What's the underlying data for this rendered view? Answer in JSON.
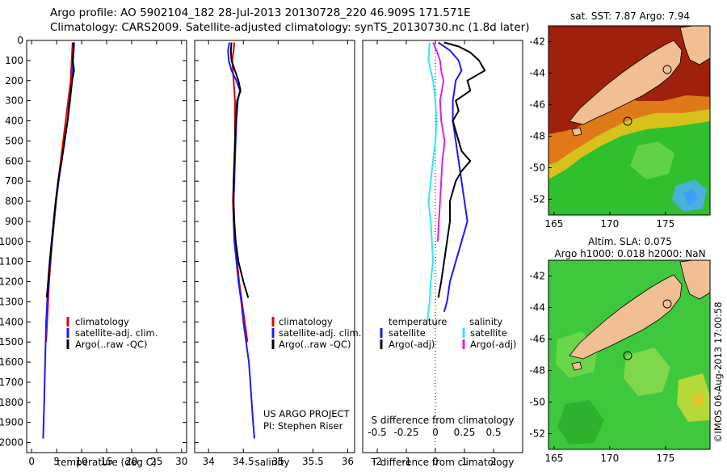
{
  "header": {
    "line1": "Argo profile: AO 5902104_182 28-Jul-2013 20130728_220 46.909S 171.571E",
    "line2": "Climatology: CARS2009. Satellite-adjusted climatology: synTS_20130730.nc (1.8d later)"
  },
  "colors": {
    "climatology": "#e00000",
    "satellite": "#1a1aff",
    "argo": "#000000",
    "satellite_salinity": "#33e6f0",
    "argo_salinity": "#e020e0",
    "land": "#f2bf95",
    "sea_ice_blue": "#3aa0ff"
  },
  "chart_data": [
    {
      "type": "line",
      "panel": "temperature",
      "xlabel": "temperature (deg C)",
      "ylabel": "",
      "xlim": [
        -1,
        31
      ],
      "ylim": [
        2050,
        0
      ],
      "xticks": [
        0,
        5,
        10,
        15,
        20,
        25,
        30
      ],
      "yticks": [
        0,
        100,
        200,
        300,
        400,
        500,
        600,
        700,
        800,
        900,
        1000,
        1100,
        1200,
        1300,
        1400,
        1500,
        1600,
        1700,
        1800,
        1900,
        2000
      ],
      "legend": [
        "climatology",
        "satellite-adj. clim.",
        "Argo(..raw -QC)"
      ],
      "legend_position": "lower-middle",
      "series": [
        {
          "name": "climatology",
          "color": "#e00000",
          "depth": [
            10,
            100,
            200,
            300,
            400,
            500,
            600,
            700,
            800,
            900,
            1000,
            1100,
            1200,
            1300,
            1400,
            1500
          ],
          "values": [
            8.2,
            8.0,
            7.8,
            7.3,
            6.8,
            6.3,
            5.8,
            5.3,
            4.9,
            4.5,
            4.1,
            3.8,
            3.5,
            3.3,
            3.1,
            2.9
          ]
        },
        {
          "name": "satellite-adj. clim.",
          "color": "#1a1aff",
          "depth": [
            10,
            100,
            200,
            300,
            400,
            500,
            600,
            700,
            800,
            900,
            1000,
            1100,
            1200,
            1300,
            1400,
            1500,
            1600,
            1700,
            1800,
            1900,
            1980
          ],
          "values": [
            8.5,
            8.3,
            8.1,
            7.7,
            7.2,
            6.6,
            6.0,
            5.4,
            4.9,
            4.5,
            4.1,
            3.7,
            3.4,
            3.1,
            2.9,
            2.8,
            2.7,
            2.6,
            2.5,
            2.4,
            2.3
          ]
        },
        {
          "name": "Argo(..raw -QC)",
          "color": "#000000",
          "depth": [
            10,
            50,
            100,
            150,
            200,
            300,
            400,
            500,
            600,
            700,
            800,
            900,
            1000,
            1100,
            1200,
            1280
          ],
          "values": [
            8.3,
            8.4,
            8.2,
            8.5,
            8.1,
            7.6,
            7.2,
            6.6,
            6.0,
            5.3,
            4.8,
            4.4,
            4.0,
            3.6,
            3.3,
            3.0
          ]
        }
      ]
    },
    {
      "type": "line",
      "panel": "salinity",
      "xlabel": "salinity",
      "ylabel": "",
      "xlim": [
        33.8,
        36.1
      ],
      "ylim": [
        2050,
        0
      ],
      "xticks": [
        34,
        34.5,
        35,
        35.5,
        36
      ],
      "xticklabels": [
        "34",
        "34.5",
        "35",
        "35.5",
        "36"
      ],
      "legend": [
        "climatology",
        "satellite-adj. clim.",
        "Argo(..raw -QC)"
      ],
      "legend_position": "lower-right",
      "annotation": [
        "US ARGO PROJECT",
        "PI: Stephen Riser"
      ],
      "series": [
        {
          "name": "climatology",
          "color": "#e00000",
          "depth": [
            10,
            50,
            100,
            150,
            200,
            250,
            300,
            400,
            500,
            600,
            700,
            800,
            900,
            1000,
            1100,
            1200,
            1300,
            1400,
            1500
          ],
          "values": [
            34.37,
            34.36,
            34.34,
            34.35,
            34.36,
            34.37,
            34.38,
            34.38,
            34.38,
            34.37,
            34.36,
            34.35,
            34.36,
            34.38,
            34.41,
            34.44,
            34.48,
            34.52,
            34.56
          ]
        },
        {
          "name": "satellite-adj. clim.",
          "color": "#1a1aff",
          "depth": [
            10,
            50,
            100,
            150,
            200,
            250,
            300,
            400,
            500,
            600,
            700,
            800,
            900,
            1000,
            1100,
            1200,
            1300,
            1400,
            1500,
            1600,
            1700,
            1800,
            1900,
            1980
          ],
          "values": [
            34.3,
            34.28,
            34.29,
            34.33,
            34.4,
            34.45,
            34.42,
            34.4,
            34.39,
            34.38,
            34.37,
            34.36,
            34.36,
            34.37,
            34.4,
            34.43,
            34.47,
            34.5,
            34.54,
            34.58,
            34.6,
            34.62,
            34.64,
            34.66
          ]
        },
        {
          "name": "Argo(..raw -QC)",
          "color": "#000000",
          "depth": [
            10,
            50,
            100,
            150,
            200,
            250,
            300,
            400,
            500,
            600,
            700,
            800,
            900,
            1000,
            1100,
            1200,
            1280
          ],
          "values": [
            34.33,
            34.32,
            34.33,
            34.38,
            34.43,
            34.46,
            34.41,
            34.39,
            34.38,
            34.37,
            34.36,
            34.36,
            34.37,
            34.39,
            34.43,
            34.5,
            34.57
          ]
        }
      ]
    },
    {
      "type": "line",
      "panel": "difference",
      "xlabel": "T difference from climatology",
      "xlabel2": "S difference from climatology",
      "xlim": [
        -2.5,
        3
      ],
      "ylim": [
        2050,
        0
      ],
      "xticks": [
        -2,
        -1,
        0,
        1,
        2
      ],
      "xticks2": [
        -0.5,
        -0.25,
        0,
        0.25,
        0.5
      ],
      "xticklabels2": [
        "-0.5",
        "-0.25",
        "0",
        "0.25",
        "0.5"
      ],
      "legend_headers": [
        "temperature",
        "salinity"
      ],
      "legend": [
        "satellite",
        "Argo(-adj)",
        "satellite",
        "Argo(-adj)"
      ],
      "series": [
        {
          "name": "temperature satellite",
          "color": "#1a1aff",
          "depth": [
            10,
            50,
            100,
            150,
            200,
            300,
            400,
            500,
            600,
            700,
            800,
            900,
            1000,
            1100,
            1200,
            1300,
            1350
          ],
          "values": [
            0.1,
            0.5,
            0.8,
            0.9,
            0.7,
            0.6,
            0.6,
            0.7,
            0.8,
            0.9,
            1.0,
            1.1,
            0.9,
            0.7,
            0.5,
            0.4,
            0.3
          ]
        },
        {
          "name": "temperature Argo(-adj)",
          "color": "#000000",
          "depth": [
            10,
            30,
            60,
            100,
            150,
            200,
            250,
            300,
            350,
            400,
            450,
            500,
            550,
            600,
            650,
            700,
            750,
            800,
            900,
            1000,
            1100,
            1200,
            1280
          ],
          "values": [
            0.3,
            0.8,
            1.2,
            1.5,
            1.7,
            1.1,
            1.2,
            0.7,
            0.8,
            0.6,
            0.7,
            0.8,
            0.9,
            1.2,
            0.9,
            0.7,
            0.6,
            0.5,
            0.5,
            0.4,
            0.3,
            0.2,
            0.1
          ]
        },
        {
          "name": "salinity satellite",
          "color": "#33e6f0",
          "depth": [
            10,
            100,
            200,
            300,
            400,
            500,
            600,
            700,
            800,
            900,
            1000,
            1100,
            1200,
            1300,
            1400
          ],
          "values": [
            -0.05,
            -0.06,
            -0.02,
            0.0,
            0.01,
            0.0,
            -0.02,
            -0.04,
            -0.06,
            -0.04,
            -0.03,
            -0.02,
            -0.04,
            -0.05,
            -0.07
          ]
        },
        {
          "name": "salinity Argo(-adj)",
          "color": "#e020e0",
          "depth": [
            10,
            50,
            100,
            150,
            200,
            300,
            400,
            500,
            600,
            700,
            800,
            900,
            1000
          ],
          "values": [
            -0.02,
            0.01,
            0.04,
            0.05,
            0.07,
            0.04,
            0.05,
            0.08,
            0.06,
            0.05,
            0.04,
            0.03,
            0.02
          ]
        }
      ]
    },
    {
      "type": "heatmap",
      "panel": "sst_map",
      "title": "sat. SST: 7.87 Argo: 7.94",
      "xlim": [
        164.5,
        179
      ],
      "ylim": [
        -53,
        -41
      ],
      "xticks": [
        165,
        170,
        175
      ],
      "yticks": [
        -42,
        -44,
        -46,
        -48,
        -50,
        -52
      ]
    },
    {
      "type": "heatmap",
      "panel": "sla_map",
      "title_line1": "Altim. SLA: 0.075",
      "title_line2": "Argo h1000: 0.018 h2000: NaN",
      "xlim": [
        164.5,
        179
      ],
      "ylim": [
        -53,
        -41
      ],
      "xticks": [
        165,
        170,
        175
      ],
      "yticks": [
        -42,
        -44,
        -46,
        -48,
        -50,
        -52
      ],
      "side_label": "©IMOS 06-Aug-2013 17:00:58"
    }
  ]
}
